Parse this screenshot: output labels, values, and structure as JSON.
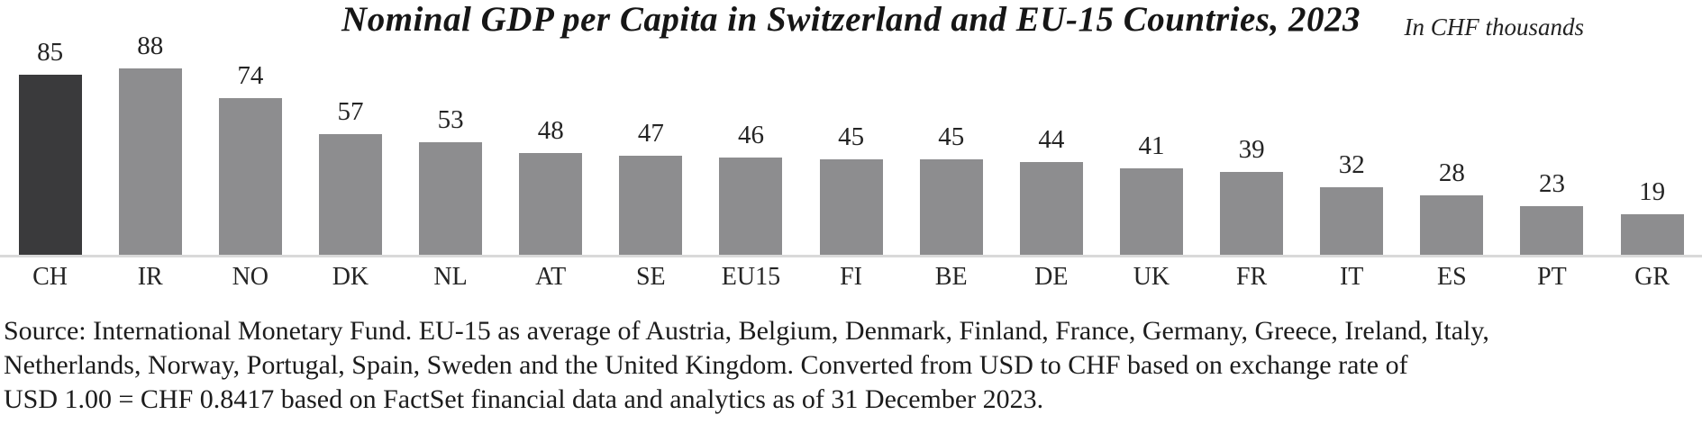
{
  "chart_data": {
    "type": "bar",
    "title": "Nominal GDP per Capita in Switzerland and EU-15 Countries, 2023",
    "unit_label": "In CHF thousands",
    "categories": [
      "CH",
      "IR",
      "NO",
      "DK",
      "NL",
      "AT",
      "SE",
      "EU15",
      "FI",
      "BE",
      "DE",
      "UK",
      "FR",
      "IT",
      "ES",
      "PT",
      "GR"
    ],
    "values": [
      85,
      88,
      74,
      57,
      53,
      48,
      47,
      46,
      45,
      45,
      44,
      41,
      39,
      32,
      28,
      23,
      19
    ],
    "highlight_category": "CH",
    "value_labels_shown": true,
    "grid": false,
    "legend": false,
    "ylim": [
      0,
      95
    ],
    "xlabel": "",
    "ylabel": "",
    "colors": {
      "bar": "#8d8d8f",
      "highlight_bar": "#3a3a3c",
      "axis_line": "#d9d9d9",
      "text": "#1c1c1c"
    }
  },
  "source": {
    "lines": [
      "Source: International Monetary Fund. EU-15 as average of Austria, Belgium, Denmark, Finland, France, Germany, Greece, Ireland, Italy,",
      "Netherlands, Norway, Portugal, Spain, Sweden and the United Kingdom. Converted from USD to CHF based on exchange rate of",
      "USD 1.00 = CHF 0.8417 based on FactSet financial data and analytics as of 31 December 2023."
    ]
  }
}
